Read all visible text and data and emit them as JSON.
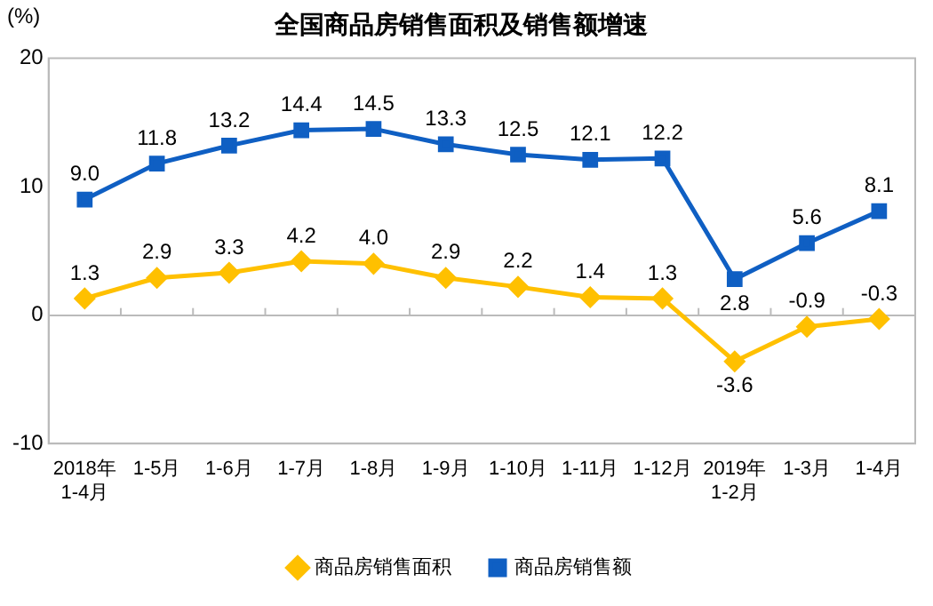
{
  "chart_data": {
    "type": "line",
    "title": "全国商品房销售面积及销售额增速",
    "ylabel": "(%)",
    "categories": [
      "2018年\n1-4月",
      "1-5月",
      "1-6月",
      "1-7月",
      "1-8月",
      "1-9月",
      "1-10月",
      "1-11月",
      "1-12月",
      "2019年\n1-2月",
      "1-3月",
      "1-4月"
    ],
    "series": [
      {
        "name": "商品房销售面积",
        "color": "#ffc000",
        "marker": "diamond",
        "values": [
          1.3,
          2.9,
          3.3,
          4.2,
          4.0,
          2.9,
          2.2,
          1.4,
          1.3,
          -3.6,
          -0.9,
          -0.3
        ],
        "value_labels": [
          "1.3",
          "2.9",
          "3.3",
          "4.2",
          "4.0",
          "2.9",
          "2.2",
          "1.4",
          "1.3",
          "-3.6",
          "-0.9",
          "-0.3"
        ]
      },
      {
        "name": "商品房销售额",
        "color": "#0f5fc3",
        "marker": "square",
        "values": [
          9.0,
          11.8,
          13.2,
          14.4,
          14.5,
          13.3,
          12.5,
          12.1,
          12.2,
          2.8,
          5.6,
          8.1
        ],
        "value_labels": [
          "9.0",
          "11.8",
          "13.2",
          "14.4",
          "14.5",
          "13.3",
          "12.5",
          "12.1",
          "12.2",
          "2.8",
          "5.6",
          "8.1"
        ]
      }
    ],
    "ylim": [
      -10,
      20
    ],
    "yticks": [
      -10,
      0,
      10,
      20
    ],
    "legend": "bottom"
  }
}
